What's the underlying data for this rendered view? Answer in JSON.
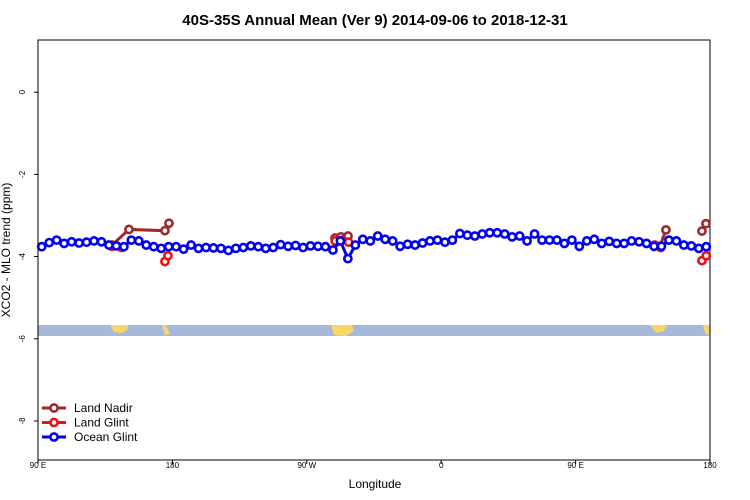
{
  "chart_data": {
    "type": "line",
    "title": "40S-35S Annual Mean (Ver 9)   2014-09-06 to 2018-12-31",
    "x_label": "Longitude",
    "y_label": "XCO2 - MLO trend (ppm)",
    "xlim": [
      90,
      540
    ],
    "ylim": [
      -8.95,
      1.27
    ],
    "xticks": [
      {
        "value": 90,
        "label": "90 E"
      },
      180,
      {
        "value": 270,
        "label": "90 W"
      },
      {
        "value": 360,
        "label": "0"
      },
      {
        "value": 450,
        "label": "90 E"
      },
      {
        "value": 540,
        "label": "180"
      }
    ],
    "yticks": [
      0,
      -2,
      -4,
      -6,
      -8
    ],
    "legend": "bottom-left",
    "series": [
      {
        "name": "Land Nadir",
        "color": "#9b2a2a",
        "x": [
          139.6,
          150.9,
          175.0,
          177.7,
          null,
          288.9,
          292.9,
          297.6,
          null,
          506.5,
          510.5,
          null,
          534.6,
          537.3
        ],
        "values": [
          -3.72,
          -3.34,
          -3.37,
          -3.19,
          null,
          -3.55,
          -3.52,
          -3.5,
          null,
          -3.75,
          -3.35,
          null,
          -3.38,
          -3.2
        ]
      },
      {
        "name": "Land Glint",
        "color": "#ee1111",
        "x": [
          139.6,
          146.0,
          null,
          175.0,
          177.0,
          null,
          289.0,
          294.0,
          298.0,
          null,
          503.0,
          507.0,
          null,
          534.6,
          537.5
        ],
        "values": [
          -3.75,
          -3.78,
          null,
          -4.12,
          -3.98,
          null,
          -3.62,
          -3.6,
          -3.65,
          null,
          -3.72,
          -3.78,
          null,
          -4.1,
          -3.98
        ]
      },
      {
        "name": "Ocean Glint",
        "color": "#0000ee",
        "x": [
          92.5,
          97.5,
          102.5,
          107.5,
          112.5,
          117.5,
          122.5,
          127.5,
          132.5,
          137.5,
          142.5,
          147.5,
          152.5,
          157.5,
          162.5,
          167.5,
          172.5,
          177.5,
          182.5,
          187.5,
          192.5,
          197.5,
          202.5,
          207.5,
          212.5,
          217.5,
          222.5,
          227.5,
          232.5,
          237.5,
          242.5,
          247.5,
          252.5,
          257.5,
          262.5,
          267.5,
          272.5,
          277.5,
          282.5,
          287.5,
          292.5,
          297.5,
          302.5,
          307.5,
          312.5,
          317.5,
          322.5,
          327.5,
          332.5,
          337.5,
          342.5,
          347.5,
          352.5,
          357.5,
          362.5,
          367.5,
          372.5,
          377.5,
          382.5,
          387.5,
          392.5,
          397.5,
          402.5,
          407.5,
          412.5,
          417.5,
          422.5,
          427.5,
          432.5,
          437.5,
          442.5,
          447.5,
          452.5,
          457.5,
          462.5,
          467.5,
          472.5,
          477.5,
          482.5,
          487.5,
          492.5,
          497.5,
          502.5,
          507.5,
          512.5,
          517.5,
          522.5,
          527.5,
          532.5,
          537.5
        ],
        "values": [
          -3.76,
          -3.66,
          -3.6,
          -3.68,
          -3.64,
          -3.67,
          -3.65,
          -3.62,
          -3.64,
          -3.72,
          -3.74,
          -3.76,
          -3.6,
          -3.62,
          -3.72,
          -3.76,
          -3.8,
          -3.76,
          -3.76,
          -3.82,
          -3.72,
          -3.8,
          -3.78,
          -3.79,
          -3.8,
          -3.85,
          -3.8,
          -3.78,
          -3.74,
          -3.76,
          -3.8,
          -3.78,
          -3.71,
          -3.75,
          -3.73,
          -3.78,
          -3.74,
          -3.75,
          -3.76,
          -3.84,
          -3.62,
          -4.05,
          -3.72,
          -3.58,
          -3.62,
          -3.5,
          -3.58,
          -3.62,
          -3.75,
          -3.7,
          -3.72,
          -3.67,
          -3.62,
          -3.6,
          -3.65,
          -3.6,
          -3.44,
          -3.48,
          -3.5,
          -3.45,
          -3.42,
          -3.42,
          -3.45,
          -3.52,
          -3.5,
          -3.62,
          -3.45,
          -3.6,
          -3.6,
          -3.6,
          -3.68,
          -3.6,
          -3.75,
          -3.62,
          -3.58,
          -3.68,
          -3.63,
          -3.68,
          -3.68,
          -3.62,
          -3.64,
          -3.68,
          -3.75,
          -3.75,
          -3.6,
          -3.62,
          -3.72,
          -3.74,
          -3.8,
          -3.76
        ]
      }
    ]
  }
}
